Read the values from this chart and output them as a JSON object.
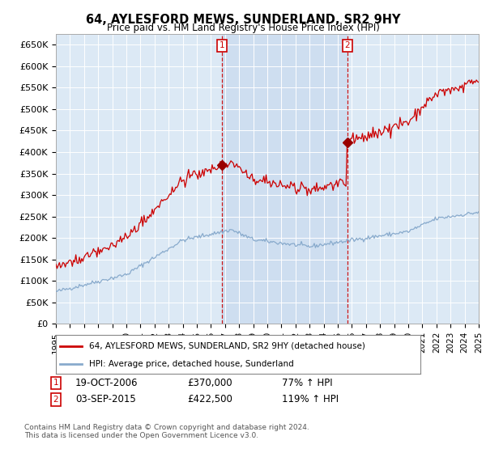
{
  "title": "64, AYLESFORD MEWS, SUNDERLAND, SR2 9HY",
  "subtitle": "Price paid vs. HM Land Registry's House Price Index (HPI)",
  "ylabel_ticks": [
    "£0",
    "£50K",
    "£100K",
    "£150K",
    "£200K",
    "£250K",
    "£300K",
    "£350K",
    "£400K",
    "£450K",
    "£500K",
    "£550K",
    "£600K",
    "£650K"
  ],
  "ylim": [
    0,
    675000
  ],
  "ytick_vals": [
    0,
    50000,
    100000,
    150000,
    200000,
    250000,
    300000,
    350000,
    400000,
    450000,
    500000,
    550000,
    600000,
    650000
  ],
  "fig_bg_color": "#ffffff",
  "plot_bg_color": "#dce9f5",
  "shade_color": "#c5d8ee",
  "grid_color": "#ffffff",
  "legend1_label": "64, AYLESFORD MEWS, SUNDERLAND, SR2 9HY (detached house)",
  "legend2_label": "HPI: Average price, detached house, Sunderland",
  "red_line_color": "#cc0000",
  "blue_line_color": "#88aacc",
  "sale1_date": "19-OCT-2006",
  "sale1_price": "£370,000",
  "sale1_pct": "77% ↑ HPI",
  "sale2_date": "03-SEP-2015",
  "sale2_price": "£422,500",
  "sale2_pct": "119% ↑ HPI",
  "footnote": "Contains HM Land Registry data © Crown copyright and database right 2024.\nThis data is licensed under the Open Government Licence v3.0.",
  "vline1_x": 2006.8,
  "vline2_x": 2015.67,
  "sale1_marker_y": 370000,
  "sale2_marker_y": 422500,
  "xmin": 1995,
  "xmax": 2025
}
